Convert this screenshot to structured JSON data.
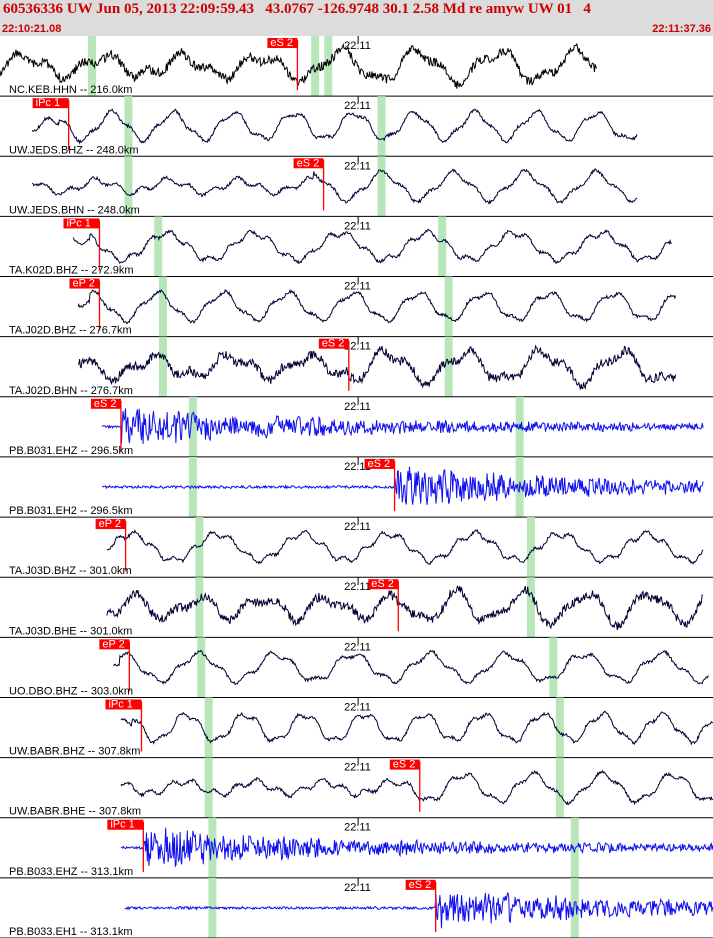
{
  "header": {
    "title": "60536336 UW Jun 05, 2013 22:09:59.43   43.0767 -126.9748 30.1 2.58 Md re amyw UW 01   4",
    "time_start": "22:10:21.08",
    "time_end": "22:11:37.36"
  },
  "colors": {
    "background": "#ffffff",
    "header_bg": "#dcdcdc",
    "header_text": "#cc0000",
    "broadband_trace": "#000033",
    "nc_trace": "#000000",
    "strain_trace": "#1010ee",
    "pick_box": "#ff0000",
    "pick_text": "#ffffff",
    "phase_band": "#b8e6b8",
    "grid": "#000000"
  },
  "chart_data": {
    "type": "seismogram",
    "time_range_s": [
      81.65,
      158.0
    ],
    "minute_ticks": [
      {
        "t_s": 120.0,
        "label": "22:11"
      }
    ],
    "traces": [
      {
        "label": "NC.KEB.HHN -- 216.0km",
        "dist_km": 216.0,
        "start_s": 81.65,
        "end_s": 145.6,
        "pick": {
          "label": "eS 2",
          "t_s": 113.5
        },
        "bands_s": [
          91.5,
          115.4,
          116.8
        ],
        "style": "noisy",
        "color": "nc"
      },
      {
        "label": "UW.JEDS.BHZ -- 248.0km",
        "dist_km": 248.0,
        "start_s": 85.1,
        "end_s": 149.9,
        "pick": {
          "label": "iPc 1",
          "t_s": 89.0
        },
        "bands_s": [
          95.4,
          122.5
        ],
        "style": "swell",
        "color": "bb"
      },
      {
        "label": "UW.JEDS.BHN -- 248.0km",
        "dist_km": 248.0,
        "start_s": 85.1,
        "end_s": 149.9,
        "pick": {
          "label": "eS 2",
          "t_s": 116.3
        },
        "bands_s": [
          95.4,
          122.5
        ],
        "style": "swell",
        "color": "bb"
      },
      {
        "label": "TA.K02D.BHZ -- 272.9km",
        "dist_km": 272.9,
        "start_s": 89.5,
        "end_s": 153.6,
        "pick": {
          "label": "iPc 1",
          "t_s": 92.3
        },
        "bands_s": [
          98.6,
          129.0
        ],
        "style": "swell",
        "color": "bb"
      },
      {
        "label": "TA.J02D.BHZ -- 276.7km",
        "dist_km": 276.7,
        "start_s": 90.0,
        "end_s": 154.0,
        "pick": {
          "label": "eP 2",
          "t_s": 92.3
        },
        "bands_s": [
          99.1,
          129.7
        ],
        "style": "swell",
        "color": "bb"
      },
      {
        "label": "TA.J02D.BHN -- 276.7km",
        "dist_km": 276.7,
        "start_s": 90.0,
        "end_s": 154.0,
        "pick": {
          "label": "eS 2",
          "t_s": 119.0
        },
        "bands_s": [
          99.1,
          129.7
        ],
        "style": "noisy",
        "color": "bb"
      },
      {
        "label": "PB.B031.EHZ -- 296.5km",
        "dist_km": 296.5,
        "start_s": 92.6,
        "end_s": 157.0,
        "pick": {
          "label": "eS 2",
          "t_s": 94.6
        },
        "bands_s": [
          102.3,
          137.3
        ],
        "style": "burst",
        "color": "strain"
      },
      {
        "label": "PB.B031.EH2 -- 296.5km",
        "dist_km": 296.5,
        "start_s": 92.6,
        "end_s": 157.0,
        "pick": {
          "label": "eS 2",
          "t_s": 123.9
        },
        "bands_s": [
          102.3,
          137.3
        ],
        "style": "burst",
        "color": "strain"
      },
      {
        "label": "TA.J03D.BHZ -- 301.0km",
        "dist_km": 301.0,
        "start_s": 93.1,
        "end_s": 157.0,
        "pick": {
          "label": "eP 2",
          "t_s": 95.1
        },
        "bands_s": [
          103.0,
          138.5
        ],
        "style": "swell",
        "color": "bb"
      },
      {
        "label": "TA.J03D.BHE -- 301.0km",
        "dist_km": 301.0,
        "start_s": 93.1,
        "end_s": 157.0,
        "pick": {
          "label": "eS 2",
          "t_s": 124.3
        },
        "bands_s": [
          103.0,
          138.5
        ],
        "style": "noisy",
        "color": "bb"
      },
      {
        "label": "UO.DBO.BHZ -- 303.0km",
        "dist_km": 303.0,
        "start_s": 93.8,
        "end_s": 157.6,
        "pick": {
          "label": "eP 2",
          "t_s": 95.5
        },
        "bands_s": [
          103.2,
          140.9
        ],
        "style": "swell",
        "color": "bb"
      },
      {
        "label": "UW.BABR.BHZ -- 307.8km",
        "dist_km": 307.8,
        "start_s": 94.6,
        "end_s": 158.0,
        "pick": {
          "label": "iPc 1",
          "t_s": 96.8
        },
        "bands_s": [
          104.0,
          141.6
        ],
        "style": "swell",
        "color": "bb"
      },
      {
        "label": "UW.BABR.BHE -- 307.8km",
        "dist_km": 307.8,
        "start_s": 94.6,
        "end_s": 158.0,
        "pick": {
          "label": "eS 2",
          "t_s": 126.6
        },
        "bands_s": [
          104.0,
          141.6
        ],
        "style": "swell",
        "color": "bb"
      },
      {
        "label": "PB.B033.EHZ -- 313.1km",
        "dist_km": 313.1,
        "start_s": 94.6,
        "end_s": 158.0,
        "pick": {
          "label": "iPc 1",
          "t_s": 97.0
        },
        "bands_s": [
          104.4,
          143.2
        ],
        "style": "burst",
        "color": "strain"
      },
      {
        "label": "PB.B033.EH1 -- 313.1km",
        "dist_km": 313.1,
        "start_s": 95.0,
        "end_s": 158.0,
        "pick": {
          "label": "eS 2",
          "t_s": 128.3
        },
        "bands_s": [
          104.4,
          143.2
        ],
        "style": "burst",
        "color": "strain"
      }
    ]
  }
}
